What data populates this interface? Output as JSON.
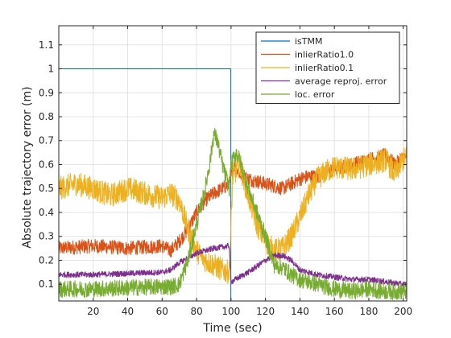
{
  "chart_data": {
    "type": "line",
    "title": "",
    "xlabel": "Time (sec)",
    "ylabel": "Absolute trajectory error (m)",
    "xlim": [
      0,
      202
    ],
    "ylim": [
      0.03,
      1.18
    ],
    "xticks": [
      20,
      40,
      60,
      80,
      100,
      120,
      140,
      160,
      180,
      200
    ],
    "yticks": [
      0.1,
      0.2,
      0.3,
      0.4,
      0.5,
      0.6,
      0.7,
      0.8,
      0.9,
      1,
      1.1
    ],
    "grid": true,
    "legend_position": "top-right",
    "series": [
      {
        "name": "isTMM",
        "color": "#0072BD",
        "noise": 0,
        "x": [
          0,
          99.9,
          99.9,
          100.1,
          100.1,
          202
        ],
        "y": [
          1,
          1,
          0.03,
          0.03,
          0.03,
          0.03
        ]
      },
      {
        "name": "inlierRatio1.0",
        "color": "#D95319",
        "noise": 0.03,
        "x": [
          0,
          20,
          40,
          60,
          65,
          70,
          75,
          80,
          85,
          90,
          95,
          99,
          102,
          105,
          110,
          120,
          130,
          140,
          145,
          150,
          155,
          160,
          170,
          180,
          190,
          195,
          200,
          202
        ],
        "y": [
          0.25,
          0.26,
          0.25,
          0.26,
          0.24,
          0.28,
          0.33,
          0.4,
          0.45,
          0.48,
          0.5,
          0.52,
          0.6,
          0.56,
          0.54,
          0.52,
          0.5,
          0.54,
          0.55,
          0.55,
          0.57,
          0.58,
          0.6,
          0.62,
          0.64,
          0.6,
          0.63,
          0.64
        ]
      },
      {
        "name": "inlierRatio0.1",
        "color": "#EDB120",
        "noise": 0.05,
        "x": [
          0,
          10,
          20,
          30,
          40,
          50,
          60,
          65,
          70,
          75,
          80,
          85,
          90,
          95,
          99,
          101,
          105,
          110,
          115,
          120,
          125,
          130,
          135,
          140,
          145,
          150,
          155,
          160,
          170,
          180,
          190,
          195,
          200,
          202
        ],
        "y": [
          0.5,
          0.52,
          0.5,
          0.47,
          0.5,
          0.48,
          0.46,
          0.48,
          0.45,
          0.33,
          0.24,
          0.2,
          0.18,
          0.16,
          0.15,
          0.55,
          0.6,
          0.47,
          0.35,
          0.28,
          0.24,
          0.25,
          0.3,
          0.38,
          0.47,
          0.54,
          0.57,
          0.59,
          0.58,
          0.6,
          0.62,
          0.56,
          0.62,
          0.63
        ]
      },
      {
        "name": "average reproj. error",
        "color": "#7E2F8E",
        "noise": 0.012,
        "x": [
          0,
          20,
          40,
          60,
          65,
          70,
          80,
          90,
          99,
          100,
          110,
          120,
          125,
          130,
          135,
          140,
          150,
          160,
          170,
          180,
          190,
          200,
          202
        ],
        "y": [
          0.14,
          0.14,
          0.145,
          0.15,
          0.16,
          0.19,
          0.23,
          0.25,
          0.26,
          0.11,
          0.15,
          0.2,
          0.22,
          0.22,
          0.2,
          0.16,
          0.14,
          0.13,
          0.12,
          0.12,
          0.11,
          0.1,
          0.1
        ]
      },
      {
        "name": "loc. error",
        "color": "#77AC30",
        "noise": 0.035,
        "x": [
          0,
          20,
          40,
          60,
          65,
          70,
          75,
          80,
          85,
          88,
          90,
          92,
          95,
          99,
          100,
          103,
          105,
          110,
          120,
          125,
          130,
          135,
          140,
          150,
          160,
          170,
          180,
          190,
          200,
          202
        ],
        "y": [
          0.08,
          0.08,
          0.085,
          0.09,
          0.09,
          0.1,
          0.2,
          0.35,
          0.5,
          0.62,
          0.73,
          0.7,
          0.6,
          0.5,
          0.6,
          0.65,
          0.62,
          0.5,
          0.3,
          0.18,
          0.17,
          0.14,
          0.12,
          0.1,
          0.08,
          0.07,
          0.08,
          0.07,
          0.07,
          0.07
        ]
      }
    ]
  }
}
